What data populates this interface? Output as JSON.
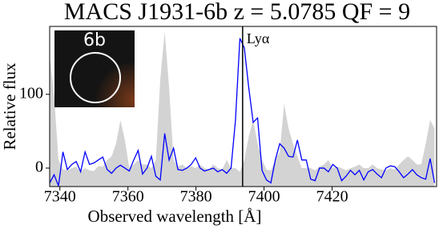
{
  "chart_data": {
    "type": "line",
    "title": "MACS J1931-6b z = 5.0785 QF = 9",
    "xlabel": "Observed wavelength  [Å]",
    "ylabel": "Relative flux",
    "annotation": "Lyα",
    "annotation_x": 7393.7,
    "inset_label": "6b",
    "x": [
      7337.0,
      7338.3,
      7339.6,
      7340.9,
      7342.2,
      7343.5,
      7344.8,
      7346.1,
      7347.4,
      7348.7,
      7350.0,
      7351.3,
      7352.6,
      7353.9,
      7355.2,
      7356.5,
      7357.8,
      7359.1,
      7360.4,
      7361.7,
      7363.0,
      7364.3,
      7365.6,
      7366.9,
      7368.2,
      7369.5,
      7370.8,
      7372.1,
      7373.4,
      7374.7,
      7376.0,
      7377.3,
      7378.6,
      7379.9,
      7381.2,
      7382.5,
      7383.8,
      7385.1,
      7386.4,
      7387.7,
      7389.0,
      7390.3,
      7391.6,
      7392.9,
      7394.2,
      7395.5,
      7396.8,
      7398.1,
      7399.4,
      7400.7,
      7402.0,
      7403.3,
      7404.6,
      7405.9,
      7407.2,
      7408.5,
      7409.8,
      7411.1,
      7412.4,
      7413.7,
      7415.0,
      7416.3,
      7417.6,
      7418.9,
      7420.2,
      7421.5,
      7422.8,
      7424.1,
      7425.4,
      7426.7,
      7428.0,
      7429.3,
      7430.6,
      7431.9,
      7433.2,
      7434.5,
      7435.8,
      7437.1,
      7438.4,
      7439.7,
      7441.0,
      7442.3,
      7443.6,
      7444.9,
      7446.2,
      7447.5,
      7448.8,
      7450.1
    ],
    "values": [
      -20,
      -9,
      -24,
      22,
      -2,
      5,
      9,
      -5,
      22,
      5,
      7,
      11,
      15,
      -2,
      -7,
      0,
      4,
      0,
      -4,
      11,
      24,
      -8,
      0,
      16,
      -11,
      -16,
      47,
      11,
      27,
      -2,
      -3,
      0,
      5,
      14,
      0,
      -4,
      -2,
      0,
      -5,
      -2,
      -7,
      0,
      65,
      176,
      163,
      109,
      62,
      68,
      -3,
      -16,
      -20,
      11,
      33,
      27,
      16,
      15,
      38,
      11,
      11,
      -15,
      -17,
      0,
      0,
      -5,
      5,
      0,
      -17,
      -11,
      -3,
      -9,
      -3,
      -16,
      -5,
      -2,
      -8,
      -13,
      0,
      3,
      2,
      -5,
      -13,
      -8,
      -2,
      -9,
      -13,
      -15,
      13,
      -20
    ],
    "color": "#0000ff",
    "sky_values": [
      152,
      98,
      11,
      -2,
      -3,
      0,
      2,
      -5,
      0,
      -3,
      -4,
      3,
      2,
      11,
      16,
      33,
      65,
      38,
      0,
      5,
      11,
      5,
      5,
      0,
      11,
      120,
      185,
      109,
      11,
      2,
      5,
      0,
      3,
      0,
      5,
      0,
      -2,
      5,
      0,
      -2,
      11,
      0,
      0,
      -5,
      11,
      43,
      65,
      33,
      11,
      -2,
      -3,
      11,
      22,
      87,
      54,
      33,
      16,
      0,
      0,
      0,
      -3,
      2,
      5,
      11,
      0,
      2,
      0,
      -3,
      0,
      2,
      5,
      0,
      0,
      5,
      0,
      -2,
      -3,
      0,
      -2,
      5,
      11,
      16,
      11,
      5,
      5,
      33,
      65,
      54
    ],
    "sky_color": "#d3d3d3",
    "xlim": [
      7337,
      7450.7
    ],
    "ylim": [
      -25,
      192
    ],
    "xticks": [
      7340,
      7360,
      7380,
      7400,
      7420
    ],
    "yticks": [
      0,
      100
    ]
  }
}
